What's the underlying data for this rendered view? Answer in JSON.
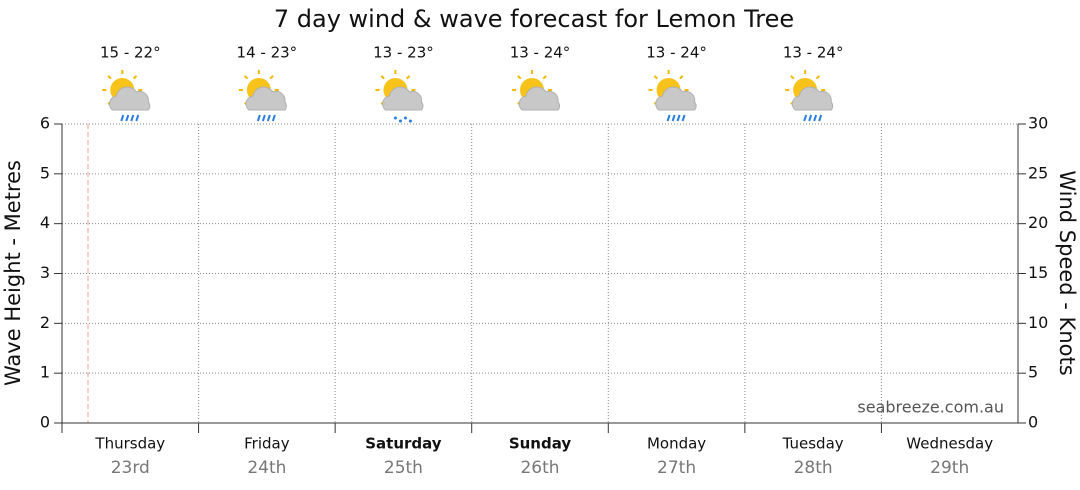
{
  "chart_data": {
    "type": "line",
    "title": "7 day wind & wave forecast for Lemon Tree",
    "y_label": "Wave Height - Metres",
    "y2_label": "Wind Speed - Knots",
    "categories": [
      "Thursday",
      "Friday",
      "Saturday",
      "Sunday",
      "Monday",
      "Tuesday",
      "Wednesday"
    ],
    "dates": [
      "23rd",
      "24th",
      "25th",
      "26th",
      "27th",
      "28th",
      "29th"
    ],
    "temperatures": [
      "15 - 22°",
      "14 - 23°",
      "13 - 23°",
      "13 - 24°",
      "13 - 24°",
      "13 - 24°"
    ],
    "ylim": [
      0,
      6
    ],
    "yticks": [
      0,
      1,
      2,
      3,
      4,
      5,
      6
    ],
    "y2lim": [
      0,
      30
    ],
    "y2ticks": [
      0,
      5,
      10,
      15,
      20,
      25,
      30
    ],
    "grid": true,
    "watermark": "seabreeze.com.au"
  }
}
